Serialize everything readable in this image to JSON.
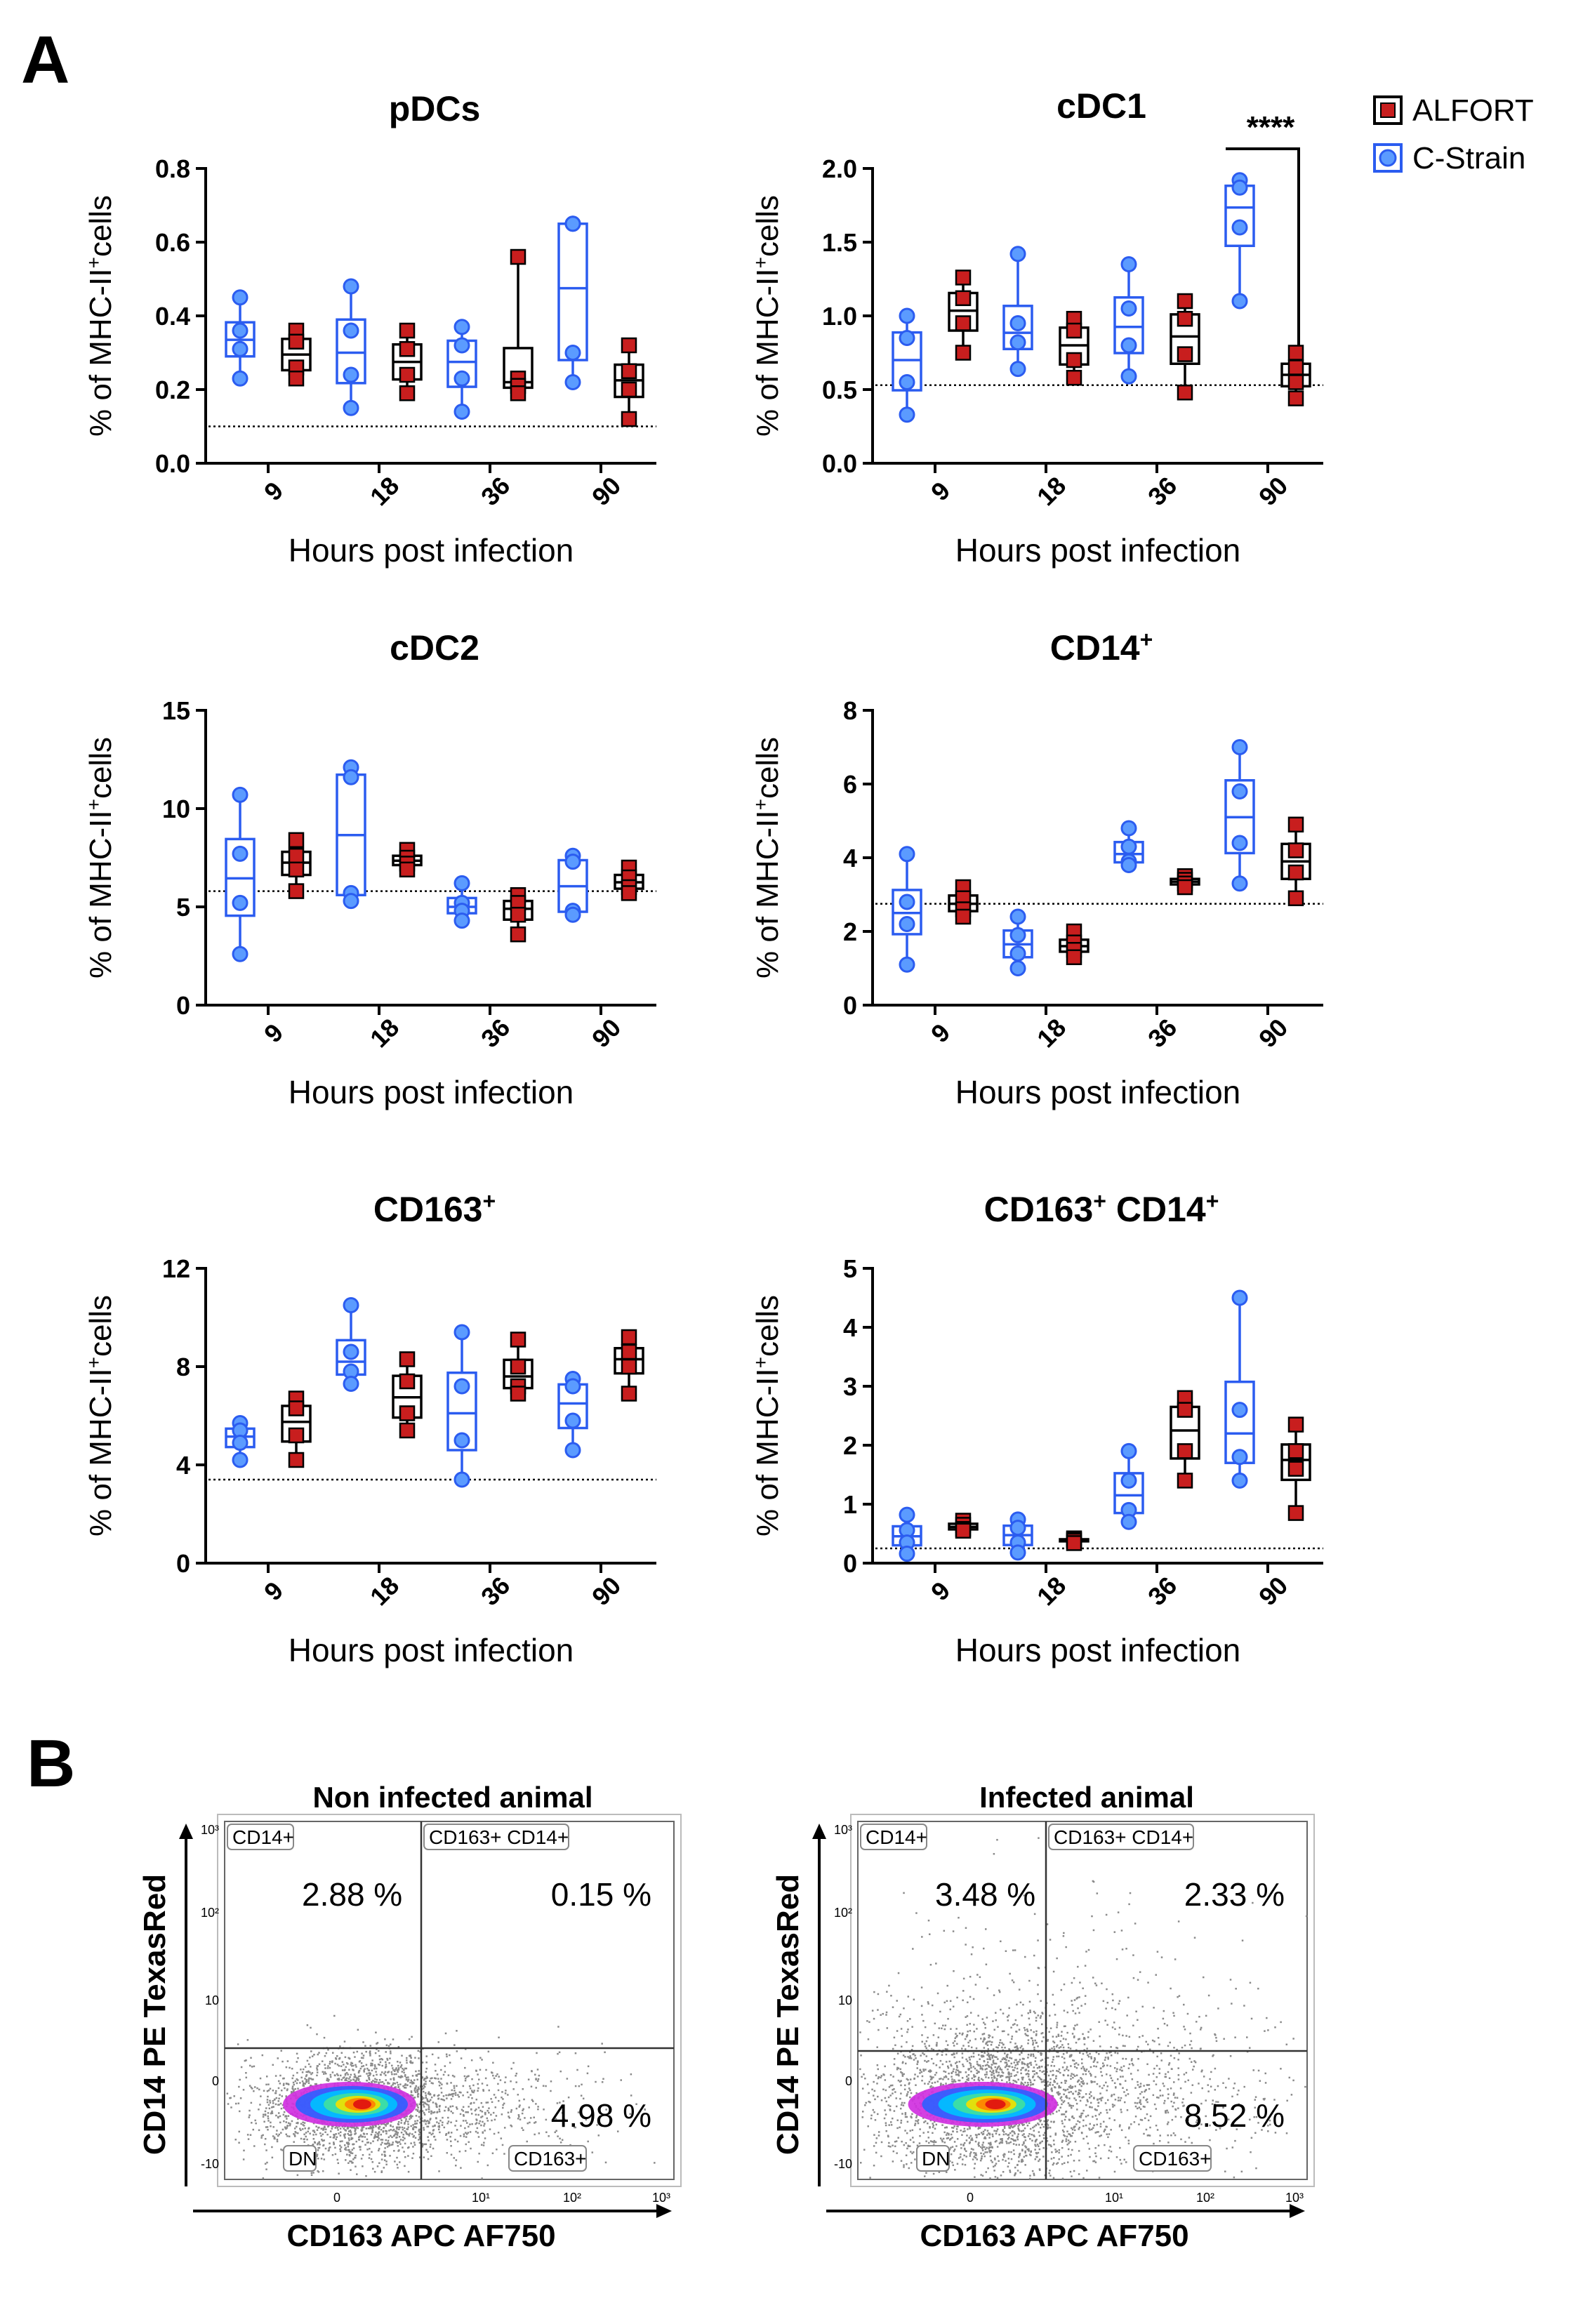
{
  "panel_labels": {
    "a": "A",
    "b": "B"
  },
  "colors": {
    "alfort": "#c81e1e",
    "cstrain": "#2b5cf0",
    "cstrain_fill": "#5b9bff",
    "gate": "#333333"
  },
  "legend": [
    {
      "label": "ALFORT",
      "series": "alfort"
    },
    {
      "label": "C-Strain",
      "series": "cstrain"
    }
  ],
  "chart_data": [
    {
      "type": "box",
      "title": "pDCs",
      "title_sup": "",
      "ylabel": "% of MHC-II",
      "ylabel_sup": "+",
      "ylabel_tail": "cells",
      "xlabel": "Hours post infection",
      "categories": [
        "9",
        "18",
        "36",
        "90"
      ],
      "ylim": [
        0,
        0.8
      ],
      "yticks": [
        "0.0",
        "0.2",
        "0.4",
        "0.6",
        "0.8"
      ],
      "baseline": 0.1,
      "series": [
        {
          "name": "C-Strain",
          "key": "cstrain",
          "points": [
            [
              0.45,
              0.36,
              0.31,
              0.23
            ],
            [
              0.48,
              0.36,
              0.24,
              0.15
            ],
            [
              0.37,
              0.32,
              0.23,
              0.14
            ],
            [
              0.65,
              0.65,
              0.3,
              0.22
            ]
          ]
        },
        {
          "name": "ALFORT",
          "key": "alfort",
          "points": [
            [
              0.36,
              0.33,
              0.26,
              0.23
            ],
            [
              0.36,
              0.31,
              0.24,
              0.19
            ],
            [
              0.56,
              0.23,
              0.21,
              0.19
            ],
            [
              0.32,
              0.25,
              0.2,
              0.12
            ]
          ]
        }
      ],
      "significance": null
    },
    {
      "type": "box",
      "title": "cDC1",
      "title_sup": "",
      "ylabel": "% of MHC-II",
      "ylabel_sup": "+",
      "ylabel_tail": "cells",
      "xlabel": "Hours post infection",
      "categories": [
        "9",
        "18",
        "36",
        "90"
      ],
      "ylim": [
        0,
        2.0
      ],
      "yticks": [
        "0.0",
        "0.5",
        "1.0",
        "1.5",
        "2.0"
      ],
      "baseline": 0.53,
      "series": [
        {
          "name": "C-Strain",
          "key": "cstrain",
          "points": [
            [
              1.0,
              0.85,
              0.55,
              0.33
            ],
            [
              1.42,
              0.95,
              0.82,
              0.64
            ],
            [
              1.35,
              1.05,
              0.8,
              0.59
            ],
            [
              1.92,
              1.87,
              1.6,
              1.1
            ]
          ]
        },
        {
          "name": "ALFORT",
          "key": "alfort",
          "points": [
            [
              1.26,
              1.12,
              0.95,
              0.75
            ],
            [
              0.98,
              0.9,
              0.7,
              0.58
            ],
            [
              1.1,
              0.98,
              0.74,
              0.48
            ],
            [
              0.75,
              0.65,
              0.55,
              0.44
            ]
          ]
        }
      ],
      "significance": {
        "category": 3,
        "label": "****"
      }
    },
    {
      "type": "box",
      "title": "cDC2",
      "title_sup": "",
      "ylabel": "% of MHC-II",
      "ylabel_sup": "+",
      "ylabel_tail": "cells",
      "xlabel": "Hours post infection",
      "categories": [
        "9",
        "18",
        "36",
        "90"
      ],
      "ylim": [
        0,
        15
      ],
      "yticks": [
        "0",
        "5",
        "10",
        "15"
      ],
      "baseline": 5.8,
      "series": [
        {
          "name": "C-Strain",
          "key": "cstrain",
          "points": [
            [
              10.7,
              7.7,
              5.2,
              2.6
            ],
            [
              12.1,
              11.6,
              5.7,
              5.3
            ],
            [
              6.2,
              5.2,
              4.8,
              4.3
            ],
            [
              7.6,
              7.3,
              4.8,
              4.6
            ]
          ]
        },
        {
          "name": "ALFORT",
          "key": "alfort",
          "points": [
            [
              8.4,
              7.6,
              6.9,
              5.8
            ],
            [
              7.9,
              7.5,
              7.2,
              6.9
            ],
            [
              5.6,
              5.2,
              4.6,
              3.6
            ],
            [
              7.0,
              6.5,
              6.0,
              5.7
            ]
          ]
        }
      ],
      "significance": null
    },
    {
      "type": "box",
      "title": "CD14",
      "title_sup": "+",
      "ylabel": "% of MHC-II",
      "ylabel_sup": "+",
      "ylabel_tail": "cells",
      "xlabel": "Hours post infection",
      "categories": [
        "9",
        "18",
        "36",
        "90"
      ],
      "ylim": [
        0,
        8
      ],
      "yticks": [
        "0",
        "2",
        "4",
        "6",
        "8"
      ],
      "baseline": 2.75,
      "series": [
        {
          "name": "C-Strain",
          "key": "cstrain",
          "points": [
            [
              4.1,
              2.8,
              2.2,
              1.1
            ],
            [
              2.4,
              1.9,
              1.4,
              1.0
            ],
            [
              4.8,
              4.3,
              3.9,
              3.8
            ],
            [
              7.0,
              5.8,
              4.4,
              3.3
            ]
          ]
        },
        {
          "name": "ALFORT",
          "key": "alfort",
          "points": [
            [
              3.2,
              2.9,
              2.6,
              2.4
            ],
            [
              2.0,
              1.7,
              1.5,
              1.3
            ],
            [
              3.5,
              3.4,
              3.3,
              3.2
            ],
            [
              4.9,
              4.2,
              3.6,
              2.9
            ]
          ]
        }
      ],
      "significance": null
    },
    {
      "type": "box",
      "title": "CD163",
      "title_sup": "+",
      "ylabel": "% of MHC-II",
      "ylabel_sup": "+",
      "ylabel_tail": "cells",
      "xlabel": "Hours post infection",
      "categories": [
        "9",
        "18",
        "36",
        "90"
      ],
      "ylim": [
        0,
        12
      ],
      "yticks": [
        "0",
        "4",
        "8",
        "12"
      ],
      "baseline": 3.4,
      "series": [
        {
          "name": "C-Strain",
          "key": "cstrain",
          "points": [
            [
              5.7,
              5.4,
              4.9,
              4.2
            ],
            [
              10.5,
              8.6,
              7.8,
              7.3
            ],
            [
              9.4,
              7.2,
              5.0,
              3.4
            ],
            [
              7.5,
              7.2,
              5.8,
              4.6
            ]
          ]
        },
        {
          "name": "ALFORT",
          "key": "alfort",
          "points": [
            [
              6.7,
              6.3,
              5.2,
              4.2
            ],
            [
              8.3,
              7.4,
              6.1,
              5.4
            ],
            [
              9.1,
              8.0,
              7.2,
              6.9
            ],
            [
              9.2,
              8.6,
              8.0,
              6.9
            ]
          ]
        }
      ],
      "significance": null
    },
    {
      "type": "box",
      "title": "CD163",
      "title_sup": "+",
      "title2": " CD14",
      "title2_sup": "+",
      "ylabel": "% of MHC-II",
      "ylabel_sup": "+",
      "ylabel_tail": "cells",
      "xlabel": "Hours post infection",
      "categories": [
        "9",
        "18",
        "36",
        "90"
      ],
      "ylim": [
        0,
        5
      ],
      "yticks": [
        "0",
        "1",
        "2",
        "3",
        "4",
        "5"
      ],
      "baseline": 0.25,
      "series": [
        {
          "name": "C-Strain",
          "key": "cstrain",
          "points": [
            [
              0.82,
              0.56,
              0.35,
              0.16
            ],
            [
              0.74,
              0.6,
              0.35,
              0.18
            ],
            [
              1.9,
              1.4,
              0.9,
              0.7
            ],
            [
              4.5,
              2.6,
              1.8,
              1.4
            ]
          ]
        },
        {
          "name": "ALFORT",
          "key": "alfort",
          "points": [
            [
              0.72,
              0.65,
              0.58,
              0.55
            ],
            [
              0.42,
              0.4,
              0.38,
              0.34
            ],
            [
              2.8,
              2.6,
              1.9,
              1.4
            ],
            [
              2.35,
              1.9,
              1.6,
              0.85
            ]
          ]
        }
      ],
      "significance": null
    },
    {
      "type": "scatter",
      "title": "Non infected animal",
      "xlabel": "CD163 APC AF750",
      "ylabel": "CD14 PE TexasRed",
      "xticks": [
        "0",
        "10¹",
        "10²",
        "10³"
      ],
      "yticks": [
        "10³",
        "10²",
        "10",
        "0",
        "-10"
      ],
      "gates": {
        "q_tl": "CD14+",
        "q_tr": "CD163+ CD14+",
        "q_bl": "DN",
        "q_br": "CD163+"
      },
      "percentages": {
        "tl": "2.88 %",
        "tr": "0.15 %",
        "br": "4.98 %"
      }
    },
    {
      "type": "scatter",
      "title": "Infected animal",
      "xlabel": "CD163 APC AF750",
      "ylabel": "CD14 PE TexasRed",
      "xticks": [
        "0",
        "10¹",
        "10²",
        "10³"
      ],
      "yticks": [
        "10³",
        "10²",
        "10",
        "0",
        "-10"
      ],
      "gates": {
        "q_tl": "CD14+",
        "q_tr": "CD163+ CD14+",
        "q_bl": "DN",
        "q_br": "CD163+"
      },
      "percentages": {
        "tl": "3.48 %",
        "tr": "2.33 %",
        "br": "8.52 %"
      }
    }
  ]
}
